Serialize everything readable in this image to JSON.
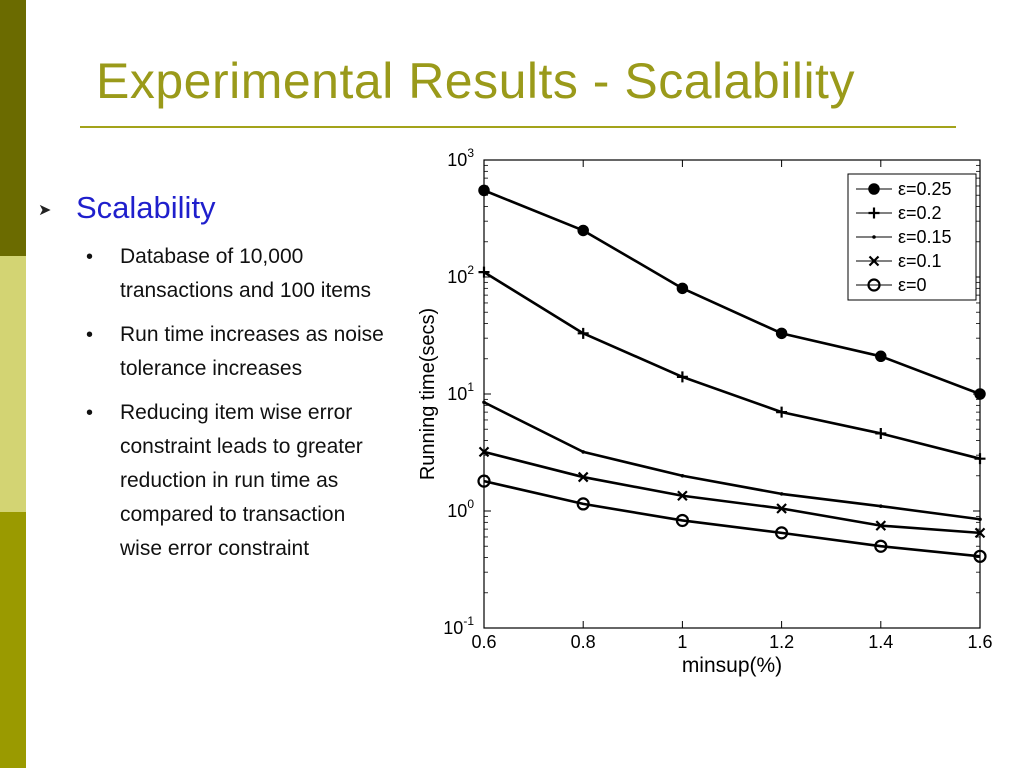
{
  "slide": {
    "title": "Experimental Results - Scalability",
    "colors": {
      "title": "#9a9a1a",
      "heading": "#1f1fcc",
      "bar_dark": "#6b6b00",
      "bar_light": "#d3d473",
      "bar_mid": "#9a9a00"
    }
  },
  "bullets": {
    "heading": "Scalability",
    "heading_icon": "arrow-bullet-icon",
    "items": [
      "Database of 10,000 transactions and 100 items",
      "Run time increases as noise tolerance increases",
      "Reducing item wise error constraint leads to greater reduction in run time as compared to transaction wise error constraint"
    ]
  },
  "chart_data": {
    "type": "line",
    "title": "",
    "xlabel": "minsup(%)",
    "ylabel": "Running time(secs)",
    "x": [
      0.6,
      0.8,
      1.0,
      1.2,
      1.4,
      1.6
    ],
    "x_tick_labels": [
      "0.6",
      "0.8",
      "1",
      "1.2",
      "1.4",
      "1.6"
    ],
    "xlim": [
      0.6,
      1.6
    ],
    "ylim": [
      0.1,
      1000
    ],
    "yscale": "log",
    "y_tick_labels": [
      {
        "base": "10",
        "exp": "-1",
        "value": 0.1
      },
      {
        "base": "10",
        "exp": "0",
        "value": 1
      },
      {
        "base": "10",
        "exp": "1",
        "value": 10
      },
      {
        "base": "10",
        "exp": "2",
        "value": 100
      },
      {
        "base": "10",
        "exp": "3",
        "value": 1000
      }
    ],
    "grid": false,
    "legend_position": "top-right",
    "series": [
      {
        "name": "ε=0.25",
        "marker": "star",
        "values": [
          550,
          250,
          80,
          33,
          21,
          10
        ]
      },
      {
        "name": "ε=0.2",
        "marker": "plus",
        "values": [
          110,
          33,
          14,
          7,
          4.6,
          2.8
        ]
      },
      {
        "name": "ε=0.15",
        "marker": "dot",
        "values": [
          8.5,
          3.2,
          2.0,
          1.4,
          1.1,
          0.85
        ]
      },
      {
        "name": "ε=0.1",
        "marker": "x",
        "values": [
          3.2,
          1.95,
          1.35,
          1.05,
          0.75,
          0.65
        ]
      },
      {
        "name": "ε=0",
        "marker": "circle",
        "values": [
          1.8,
          1.15,
          0.83,
          0.65,
          0.5,
          0.41
        ]
      }
    ]
  }
}
